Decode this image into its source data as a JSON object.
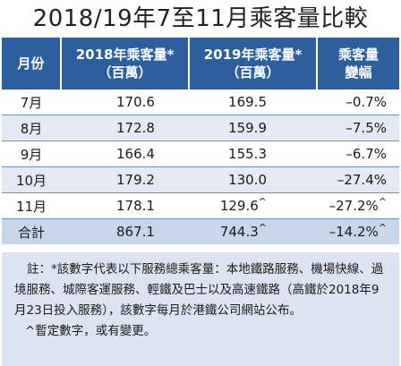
{
  "title": "2018/19年7至11月乘客量比較",
  "table": {
    "headers": {
      "month": "月份",
      "y2018_l1": "2018年乘客量*",
      "y2018_l2": "（百萬）",
      "y2019_l1": "2019年乘客量*",
      "y2019_l2": "（百萬）",
      "change_l1": "乘客量",
      "change_l2": "變幅"
    },
    "rows": [
      {
        "month": "7月",
        "y2018": "170.6",
        "y2019": "169.5",
        "y2019_mark": "",
        "change": "–0.7%",
        "change_mark": ""
      },
      {
        "month": "8月",
        "y2018": "172.8",
        "y2019": "159.9",
        "y2019_mark": "",
        "change": "–7.5%",
        "change_mark": ""
      },
      {
        "month": "9月",
        "y2018": "166.4",
        "y2019": "155.3",
        "y2019_mark": "",
        "change": "–6.7%",
        "change_mark": ""
      },
      {
        "month": "10月",
        "y2018": "179.2",
        "y2019": "130.0",
        "y2019_mark": "",
        "change": "–27.4%",
        "change_mark": ""
      },
      {
        "month": "11月",
        "y2018": "178.1",
        "y2019": "129.6",
        "y2019_mark": "^",
        "change": "–27.2%",
        "change_mark": "^"
      },
      {
        "month": "合計",
        "y2018": "867.1",
        "y2019": "744.3",
        "y2019_mark": "^",
        "change": "–14.2%",
        "change_mark": "^"
      }
    ]
  },
  "notes": {
    "note1": "註：*該數字代表以下服務總乘客量：本地鐵路服務、機場快線、過境服務、城際客運服務、輕鐵及巴士以及高速鐵路（高鐵於2018年9月23日投入服務），該數字每月於港鐵公司網站公布。",
    "note2": "^暫定數字，或有變更。"
  },
  "colors": {
    "header_bg": "#2d5f9e",
    "row_alt_bg": "#e3eaf4",
    "total_bg": "#c9d6ea",
    "note_bg": "#dbe4f0"
  }
}
